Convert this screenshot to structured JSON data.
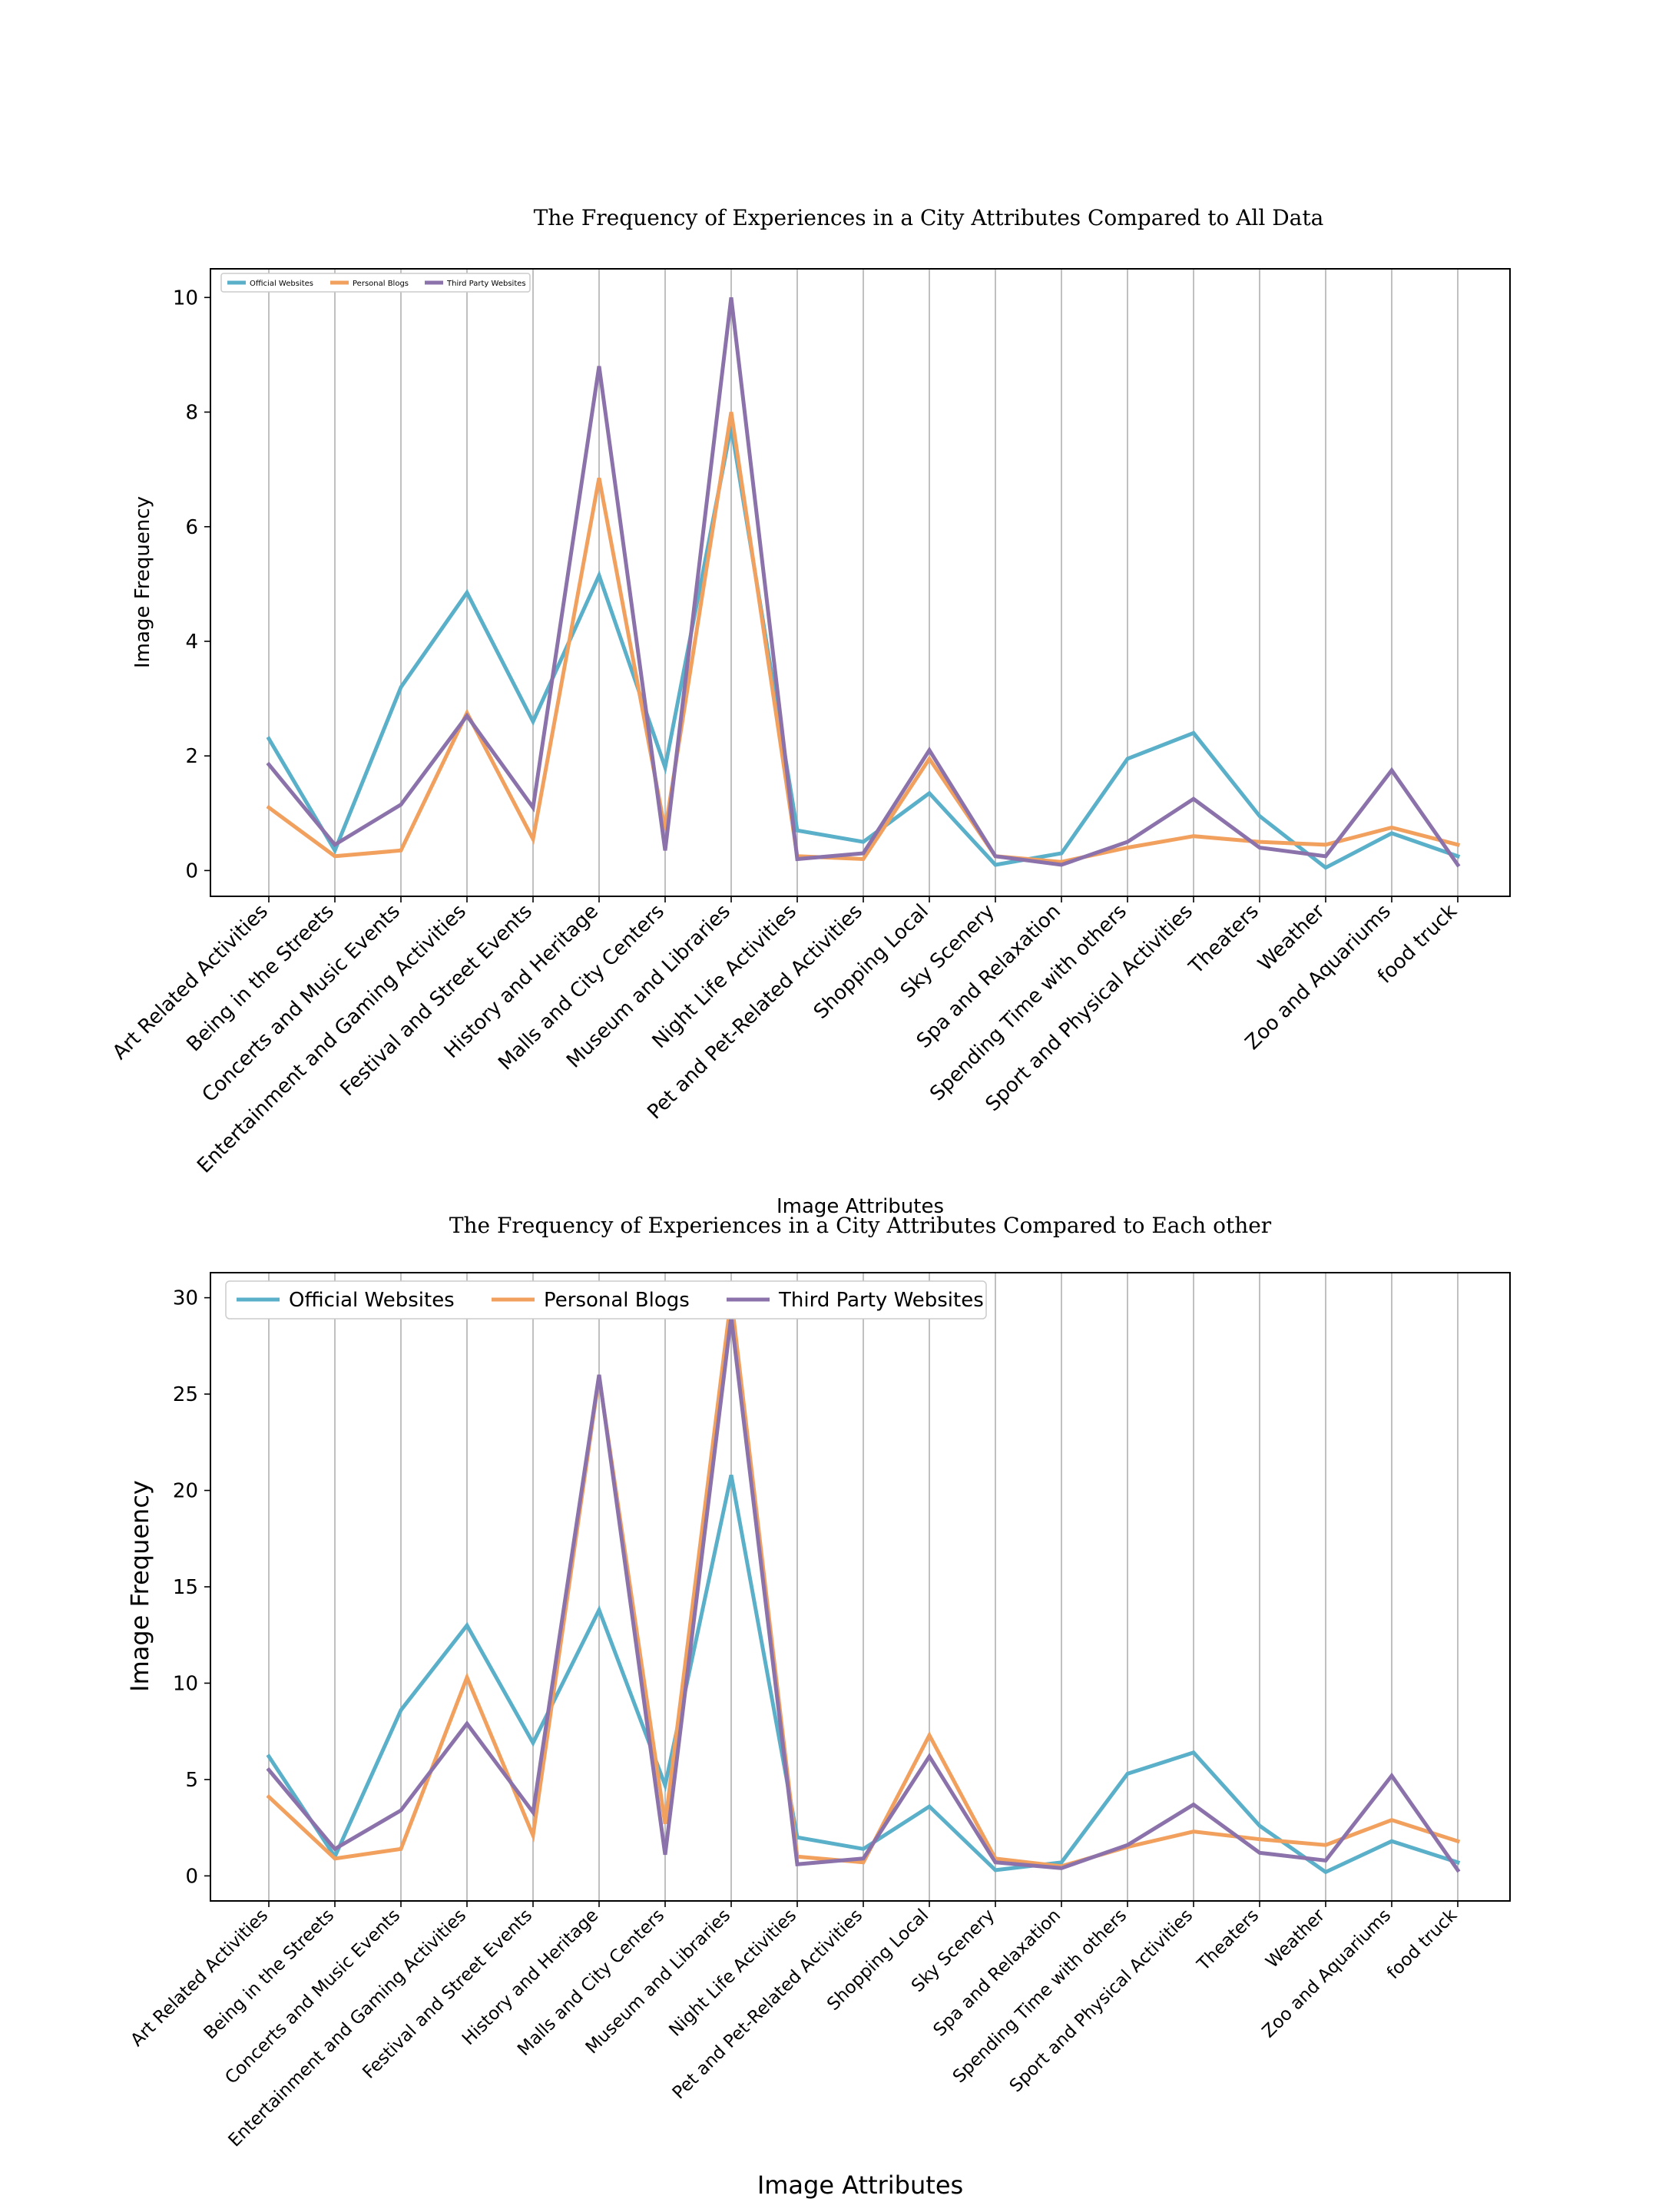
{
  "chart_data": [
    {
      "type": "line",
      "title": "The Frequency of Experiences in a City Attributes Compared to All Data",
      "xlabel": "Image Attributes",
      "ylabel": "Image Frequency",
      "ylim": [
        -0.45,
        10.5
      ],
      "yticks": [
        0,
        2,
        4,
        6,
        8,
        10
      ],
      "grid": "vertical",
      "legend_position": "top-left",
      "categories": [
        "Art Related Activities",
        "Being in the Streets",
        "Concerts and Music Events",
        "Entertainment and Gaming Activities",
        "Festival and Street Events",
        "History and Heritage",
        "Malls and City Centers",
        "Museum and Libraries",
        "Night Life Activities",
        "Pet and Pet-Related Activities",
        "Shopping Local",
        "Sky Scenery",
        "Spa and Relaxation",
        "Spending Time with others",
        "Sport and Physical Activities",
        "Theaters",
        "Weather",
        "Zoo and Aquariums",
        "food truck"
      ],
      "series": [
        {
          "name": "Official Websites",
          "color": "#5aafc9",
          "values": [
            2.3,
            0.35,
            3.2,
            4.85,
            2.6,
            5.15,
            1.8,
            7.75,
            0.7,
            0.5,
            1.35,
            0.1,
            0.3,
            1.95,
            2.4,
            0.95,
            0.05,
            0.65,
            0.25
          ]
        },
        {
          "name": "Personal Blogs",
          "color": "#f2a05e",
          "values": [
            1.1,
            0.25,
            0.35,
            2.75,
            0.55,
            6.85,
            0.7,
            8.0,
            0.25,
            0.2,
            1.95,
            0.25,
            0.15,
            0.4,
            0.6,
            0.5,
            0.45,
            0.75,
            0.45
          ]
        },
        {
          "name": "Third Party Websites",
          "color": "#8b72aa",
          "values": [
            1.85,
            0.45,
            1.15,
            2.7,
            1.1,
            8.8,
            0.35,
            10.0,
            0.2,
            0.3,
            2.1,
            0.25,
            0.1,
            0.5,
            1.25,
            0.4,
            0.25,
            1.75,
            0.1
          ]
        }
      ]
    },
    {
      "type": "line",
      "title": "The Frequency of  Experiences in a City Attributes Compared to Each other",
      "xlabel": "Image Attributes",
      "ylabel": "Image Frequency",
      "ylim": [
        -1.3,
        31.3
      ],
      "yticks": [
        0,
        5,
        10,
        15,
        20,
        25,
        30
      ],
      "grid": "vertical",
      "legend_position": "top-left",
      "categories": [
        "Art Related Activities",
        "Being in the Streets",
        "Concerts and Music Events",
        "Entertainment and Gaming Activities",
        "Festival and Street Events",
        "History and Heritage",
        "Malls and City Centers",
        "Museum and Libraries",
        "Night Life Activities",
        "Pet and Pet-Related Activities",
        "Shopping Local",
        "Sky Scenery",
        "Spa and Relaxation",
        "Spending Time with others",
        "Sport and Physical Activities",
        "Theaters",
        "Weather",
        "Zoo and Aquariums",
        "food truck"
      ],
      "series": [
        {
          "name": "Official Websites",
          "color": "#5aafc9",
          "values": [
            6.2,
            1.0,
            8.6,
            13.0,
            6.9,
            13.8,
            4.7,
            20.8,
            2.0,
            1.4,
            3.6,
            0.3,
            0.7,
            5.3,
            6.4,
            2.6,
            0.2,
            1.8,
            0.7
          ]
        },
        {
          "name": "Personal Blogs",
          "color": "#f2a05e",
          "values": [
            4.1,
            0.9,
            1.4,
            10.3,
            2.1,
            25.9,
            2.7,
            30.0,
            1.0,
            0.7,
            7.3,
            0.9,
            0.5,
            1.5,
            2.3,
            1.9,
            1.6,
            2.9,
            1.8
          ]
        },
        {
          "name": "Third Party Websites",
          "color": "#8b72aa",
          "values": [
            5.5,
            1.4,
            3.4,
            7.9,
            3.3,
            26.0,
            1.1,
            29.0,
            0.6,
            0.9,
            6.2,
            0.7,
            0.4,
            1.6,
            3.7,
            1.2,
            0.8,
            5.2,
            0.3
          ]
        }
      ]
    }
  ]
}
